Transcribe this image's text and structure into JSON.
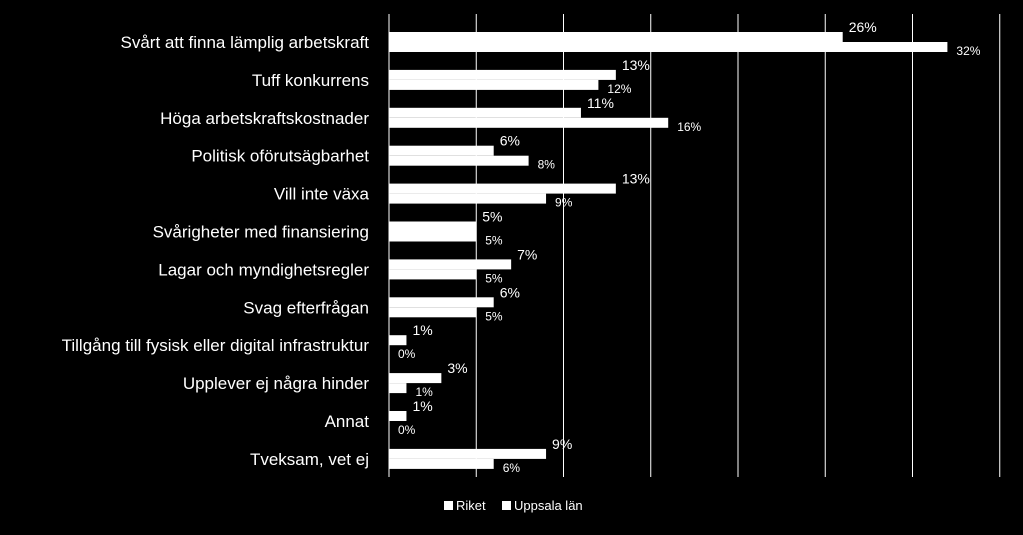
{
  "chart_data": {
    "type": "bar",
    "orientation": "horizontal",
    "categories": [
      "Svårt att finna lämplig arbetskraft",
      "Tuff konkurrens",
      "Höga arbetskraftskostnader",
      "Politisk oförutsägbarhet",
      "Vill inte växa",
      "Svårigheter med finansiering",
      "Lagar och myndighetsregler",
      "Svag efterfrågan ",
      "Tillgång till fysisk eller digital infrastruktur",
      "Upplever ej några hinder",
      "Annat",
      "Tveksam, vet ej"
    ],
    "series": [
      {
        "name": "Riket",
        "values": [
          26,
          13,
          11,
          6,
          13,
          5,
          7,
          6,
          1,
          3,
          1,
          9
        ],
        "labels": [
          "26%",
          "13%",
          "11%",
          "6%",
          "13%",
          "5%",
          "7%",
          "6%",
          "1%",
          "3%",
          "1%",
          "9%"
        ]
      },
      {
        "name": "Uppsala län",
        "values": [
          32,
          12,
          16,
          8,
          9,
          5,
          5,
          5,
          0,
          1,
          0,
          6
        ],
        "labels": [
          "32%",
          "12%",
          "16%",
          "8%",
          "9%",
          "5%",
          "5%",
          "5%",
          "0%",
          "1%",
          "0%",
          "6%"
        ]
      }
    ],
    "xlim": [
      0,
      35
    ],
    "grid": true,
    "legend_position": "bottom",
    "colors": {
      "background": "#000000",
      "bars": "#ffffff",
      "grid": "#ffffff",
      "text": "#ffffff"
    }
  }
}
